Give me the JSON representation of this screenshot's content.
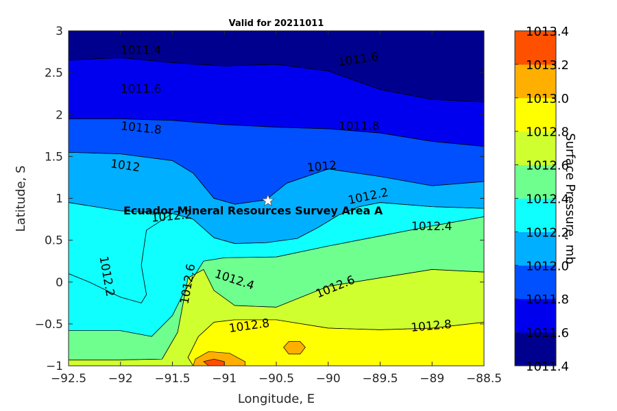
{
  "chart_data": {
    "type": "contour",
    "title": "Valid for 20211011",
    "xlabel": "Longitude, E",
    "ylabel": "Latitude, S",
    "colorbar_label": "Surface Pressure, mb",
    "xlim": [
      -92.5,
      -88.5
    ],
    "ylim": [
      -1,
      3
    ],
    "xticks": [
      "-92.5",
      "-92",
      "-91.5",
      "-91",
      "-90.5",
      "-90",
      "-89.5",
      "-89",
      "-88.5"
    ],
    "yticks": [
      "-1",
      "-0.5",
      "0",
      "0.5",
      "1",
      "1.5",
      "2",
      "2.5",
      "3"
    ],
    "levels": [
      1011.4,
      1011.6,
      1011.8,
      1012.0,
      1012.2,
      1012.4,
      1012.6,
      1012.8,
      1013.0,
      1013.2,
      1013.4
    ],
    "colorbar_ticks": [
      "1011.4",
      "1011.6",
      "1011.8",
      "1012.0",
      "1012.2",
      "1012.4",
      "1012.6",
      "1012.8",
      "1013.0",
      "1013.2",
      "1013.4"
    ],
    "colorbar_colors": [
      "#00008f",
      "#0000ef",
      "#0050ff",
      "#00afff",
      "#0fffff",
      "#6fff8f",
      "#cfff2f",
      "#ffff00",
      "#ffaf00",
      "#ff5000"
    ],
    "bands": [
      {
        "level_from": 1011.4,
        "color": "#00008f",
        "boundary": [
          [
            -92.5,
            3
          ],
          [
            -88.5,
            3
          ],
          [
            -88.5,
            2.15
          ],
          [
            -89,
            2.18
          ],
          [
            -89.5,
            2.3
          ],
          [
            -90,
            2.52
          ],
          [
            -90.5,
            2.6
          ],
          [
            -91,
            2.58
          ],
          [
            -91.5,
            2.62
          ],
          [
            -92,
            2.68
          ],
          [
            -92.5,
            2.65
          ]
        ]
      },
      {
        "level_from": 1011.6,
        "color": "#0000ef",
        "boundary": [
          [
            -92.5,
            2.65
          ],
          [
            -92,
            2.68
          ],
          [
            -91.5,
            2.62
          ],
          [
            -91,
            2.58
          ],
          [
            -90.5,
            2.6
          ],
          [
            -90,
            2.52
          ],
          [
            -89.5,
            2.3
          ],
          [
            -89,
            2.18
          ],
          [
            -88.5,
            2.15
          ],
          [
            -88.5,
            1.62
          ],
          [
            -89,
            1.68
          ],
          [
            -89.5,
            1.78
          ],
          [
            -90,
            1.83
          ],
          [
            -90.5,
            1.85
          ],
          [
            -91,
            1.88
          ],
          [
            -91.5,
            1.93
          ],
          [
            -92,
            1.95
          ],
          [
            -92.5,
            1.95
          ]
        ]
      },
      {
        "level_from": 1011.8,
        "color": "#0050ff",
        "boundary": [
          [
            -92.5,
            1.95
          ],
          [
            -92,
            1.95
          ],
          [
            -91.5,
            1.93
          ],
          [
            -91,
            1.88
          ],
          [
            -90.5,
            1.85
          ],
          [
            -90,
            1.83
          ],
          [
            -89.5,
            1.78
          ],
          [
            -89,
            1.68
          ],
          [
            -88.5,
            1.62
          ],
          [
            -88.5,
            1.2
          ],
          [
            -89,
            1.15
          ],
          [
            -89.5,
            1.26
          ],
          [
            -90,
            1.35
          ],
          [
            -90.4,
            1.18
          ],
          [
            -90.6,
            0.98
          ],
          [
            -90.9,
            0.93
          ],
          [
            -91.1,
            1.0
          ],
          [
            -91.3,
            1.3
          ],
          [
            -91.5,
            1.45
          ],
          [
            -92,
            1.53
          ],
          [
            -92.5,
            1.55
          ]
        ]
      },
      {
        "level_from": 1012.0,
        "color": "#00afff",
        "boundary": [
          [
            -92.5,
            1.55
          ],
          [
            -92,
            1.53
          ],
          [
            -91.5,
            1.45
          ],
          [
            -91.3,
            1.3
          ],
          [
            -91.1,
            1.0
          ],
          [
            -90.9,
            0.93
          ],
          [
            -90.6,
            0.98
          ],
          [
            -90.4,
            1.18
          ],
          [
            -90,
            1.35
          ],
          [
            -89.5,
            1.26
          ],
          [
            -89,
            1.15
          ],
          [
            -88.5,
            1.2
          ],
          [
            -88.5,
            0.88
          ],
          [
            -89,
            0.9
          ],
          [
            -89.5,
            0.95
          ],
          [
            -89.7,
            0.9
          ],
          [
            -89.9,
            0.8
          ],
          [
            -90.1,
            0.65
          ],
          [
            -90.3,
            0.52
          ],
          [
            -90.6,
            0.47
          ],
          [
            -90.9,
            0.46
          ],
          [
            -91.1,
            0.53
          ],
          [
            -91.3,
            0.75
          ],
          [
            -91.5,
            0.82
          ],
          [
            -91.75,
            0.62
          ],
          [
            -91.8,
            0.2
          ],
          [
            -91.75,
            -0.15
          ],
          [
            -91.8,
            -0.25
          ],
          [
            -92,
            -0.18
          ],
          [
            -92.3,
            0.0
          ],
          [
            -92.5,
            0.1
          ]
        ]
      },
      {
        "level_from": 1012.0,
        "color": "#00afff",
        "boundary": [
          [
            -92.5,
            0.1
          ],
          [
            -92.3,
            0.0
          ],
          [
            -92,
            -0.18
          ],
          [
            -91.8,
            -0.25
          ],
          [
            -91.75,
            -0.15
          ],
          [
            -91.8,
            0.2
          ],
          [
            -91.75,
            0.62
          ],
          [
            -91.5,
            0.82
          ],
          [
            -92,
            0.85
          ],
          [
            -92.5,
            0.95
          ]
        ]
      },
      {
        "level_from": 1012.2,
        "color": "#0fffff",
        "boundary": [
          [
            -92.5,
            0.95
          ],
          [
            -92,
            0.85
          ],
          [
            -91.5,
            0.82
          ],
          [
            -91.3,
            0.75
          ],
          [
            -91.1,
            0.53
          ],
          [
            -90.9,
            0.46
          ],
          [
            -90.6,
            0.47
          ],
          [
            -90.3,
            0.52
          ],
          [
            -90.1,
            0.65
          ],
          [
            -89.9,
            0.8
          ],
          [
            -89.7,
            0.9
          ],
          [
            -89.5,
            0.95
          ],
          [
            -89,
            0.9
          ],
          [
            -88.5,
            0.88
          ],
          [
            -88.5,
            0.78
          ],
          [
            -89,
            0.67
          ],
          [
            -89.5,
            0.55
          ],
          [
            -90,
            0.43
          ],
          [
            -90.5,
            0.3
          ],
          [
            -91,
            0.29
          ],
          [
            -91.2,
            0.25
          ],
          [
            -91.4,
            -0.15
          ],
          [
            -91.5,
            -0.4
          ],
          [
            -91.7,
            -0.65
          ],
          [
            -92,
            -0.58
          ],
          [
            -92.5,
            -0.58
          ]
        ]
      },
      {
        "level_from": 1012.4,
        "color": "#6fff8f",
        "boundary": [
          [
            -92.5,
            -0.58
          ],
          [
            -92,
            -0.58
          ],
          [
            -91.7,
            -0.65
          ],
          [
            -91.5,
            -0.4
          ],
          [
            -91.4,
            -0.15
          ],
          [
            -91.2,
            0.25
          ],
          [
            -91,
            0.29
          ],
          [
            -90.5,
            0.3
          ],
          [
            -90,
            0.43
          ],
          [
            -89.5,
            0.55
          ],
          [
            -89,
            0.67
          ],
          [
            -88.5,
            0.78
          ],
          [
            -88.5,
            0.12
          ],
          [
            -89,
            0.15
          ],
          [
            -89.5,
            0.05
          ],
          [
            -90,
            -0.05
          ],
          [
            -90.5,
            -0.3
          ],
          [
            -90.9,
            -0.28
          ],
          [
            -91.1,
            -0.1
          ],
          [
            -91.2,
            0.15
          ],
          [
            -91.35,
            0.05
          ],
          [
            -91.45,
            -0.6
          ],
          [
            -91.6,
            -0.92
          ],
          [
            -92,
            -0.93
          ],
          [
            -92.5,
            -0.93
          ]
        ]
      },
      {
        "level_from": 1012.6,
        "color": "#cfff2f",
        "boundary": [
          [
            -92.5,
            -0.93
          ],
          [
            -92,
            -0.93
          ],
          [
            -91.6,
            -0.92
          ],
          [
            -91.45,
            -0.6
          ],
          [
            -91.35,
            0.05
          ],
          [
            -91.2,
            0.15
          ],
          [
            -91.1,
            -0.1
          ],
          [
            -90.9,
            -0.28
          ],
          [
            -90.5,
            -0.3
          ],
          [
            -90,
            -0.05
          ],
          [
            -89.5,
            0.05
          ],
          [
            -89,
            0.15
          ],
          [
            -88.5,
            0.12
          ],
          [
            -88.5,
            -0.48
          ],
          [
            -89,
            -0.55
          ],
          [
            -89.5,
            -0.57
          ],
          [
            -90,
            -0.55
          ],
          [
            -90.5,
            -0.45
          ],
          [
            -90.9,
            -0.45
          ],
          [
            -91.1,
            -0.48
          ],
          [
            -91.25,
            -0.65
          ],
          [
            -91.35,
            -0.9
          ],
          [
            -91.3,
            -1
          ],
          [
            -92.5,
            -1
          ]
        ]
      },
      {
        "level_from": 1012.8,
        "color": "#ffff00",
        "boundary": [
          [
            -91.3,
            -1
          ],
          [
            -91.35,
            -0.9
          ],
          [
            -91.25,
            -0.65
          ],
          [
            -91.1,
            -0.48
          ],
          [
            -90.9,
            -0.45
          ],
          [
            -90.5,
            -0.45
          ],
          [
            -90,
            -0.55
          ],
          [
            -89.5,
            -0.57
          ],
          [
            -89,
            -0.55
          ],
          [
            -88.5,
            -0.48
          ],
          [
            -88.5,
            -1
          ]
        ]
      },
      {
        "level_from": 1013.0,
        "color": "#ffaf00",
        "boundary": [
          [
            -91.3,
            -1
          ],
          [
            -91.28,
            -0.92
          ],
          [
            -91.15,
            -0.83
          ],
          [
            -90.95,
            -0.85
          ],
          [
            -90.8,
            -0.95
          ],
          [
            -90.8,
            -1
          ]
        ]
      },
      {
        "level_from": 1013.0,
        "color": "#ffaf00",
        "boundary": [
          [
            -90.43,
            -0.78
          ],
          [
            -90.38,
            -0.71
          ],
          [
            -90.27,
            -0.71
          ],
          [
            -90.22,
            -0.78
          ],
          [
            -90.27,
            -0.86
          ],
          [
            -90.38,
            -0.86
          ]
        ]
      },
      {
        "level_from": 1013.2,
        "color": "#ff5000",
        "boundary": [
          [
            -91.15,
            -1
          ],
          [
            -91.2,
            -0.95
          ],
          [
            -91.1,
            -0.92
          ],
          [
            -91.0,
            -0.95
          ],
          [
            -91.0,
            -1
          ]
        ]
      }
    ],
    "contour_labels": [
      {
        "text": "1011.4",
        "x": -92.0,
        "y": 2.72,
        "angle": 0
      },
      {
        "text": "1011.6",
        "x": -89.9,
        "y": 2.58,
        "angle": -8
      },
      {
        "text": "1011.6",
        "x": -92.0,
        "y": 2.26,
        "angle": 0
      },
      {
        "text": "1011.8",
        "x": -92.0,
        "y": 1.82,
        "angle": 6
      },
      {
        "text": "1011.8",
        "x": -89.9,
        "y": 1.82,
        "angle": 0
      },
      {
        "text": "1012",
        "x": -92.1,
        "y": 1.37,
        "angle": 8
      },
      {
        "text": "1012",
        "x": -90.2,
        "y": 1.32,
        "angle": -5
      },
      {
        "text": "1012.2",
        "x": -91.7,
        "y": 0.72,
        "angle": -5
      },
      {
        "text": "1012.2",
        "x": -89.8,
        "y": 0.93,
        "angle": -12
      },
      {
        "text": "1012.2",
        "x": -92.2,
        "y": 0.3,
        "angle": 80
      },
      {
        "text": "1012.4",
        "x": -89.2,
        "y": 0.62,
        "angle": 0
      },
      {
        "text": "1012.4",
        "x": -91.1,
        "y": 0.06,
        "angle": 18
      },
      {
        "text": "1012.6",
        "x": -91.35,
        "y": -0.27,
        "angle": -80
      },
      {
        "text": "1012.6",
        "x": -90.1,
        "y": -0.19,
        "angle": -22
      },
      {
        "text": "1012.8",
        "x": -90.95,
        "y": -0.6,
        "angle": -8
      },
      {
        "text": "1012.8",
        "x": -89.2,
        "y": -0.59,
        "angle": -5
      }
    ],
    "annotation": {
      "text": "Ecuador Mineral Resources Survey Area A",
      "x": -90.58,
      "y": 0.97,
      "marker": "star"
    }
  }
}
